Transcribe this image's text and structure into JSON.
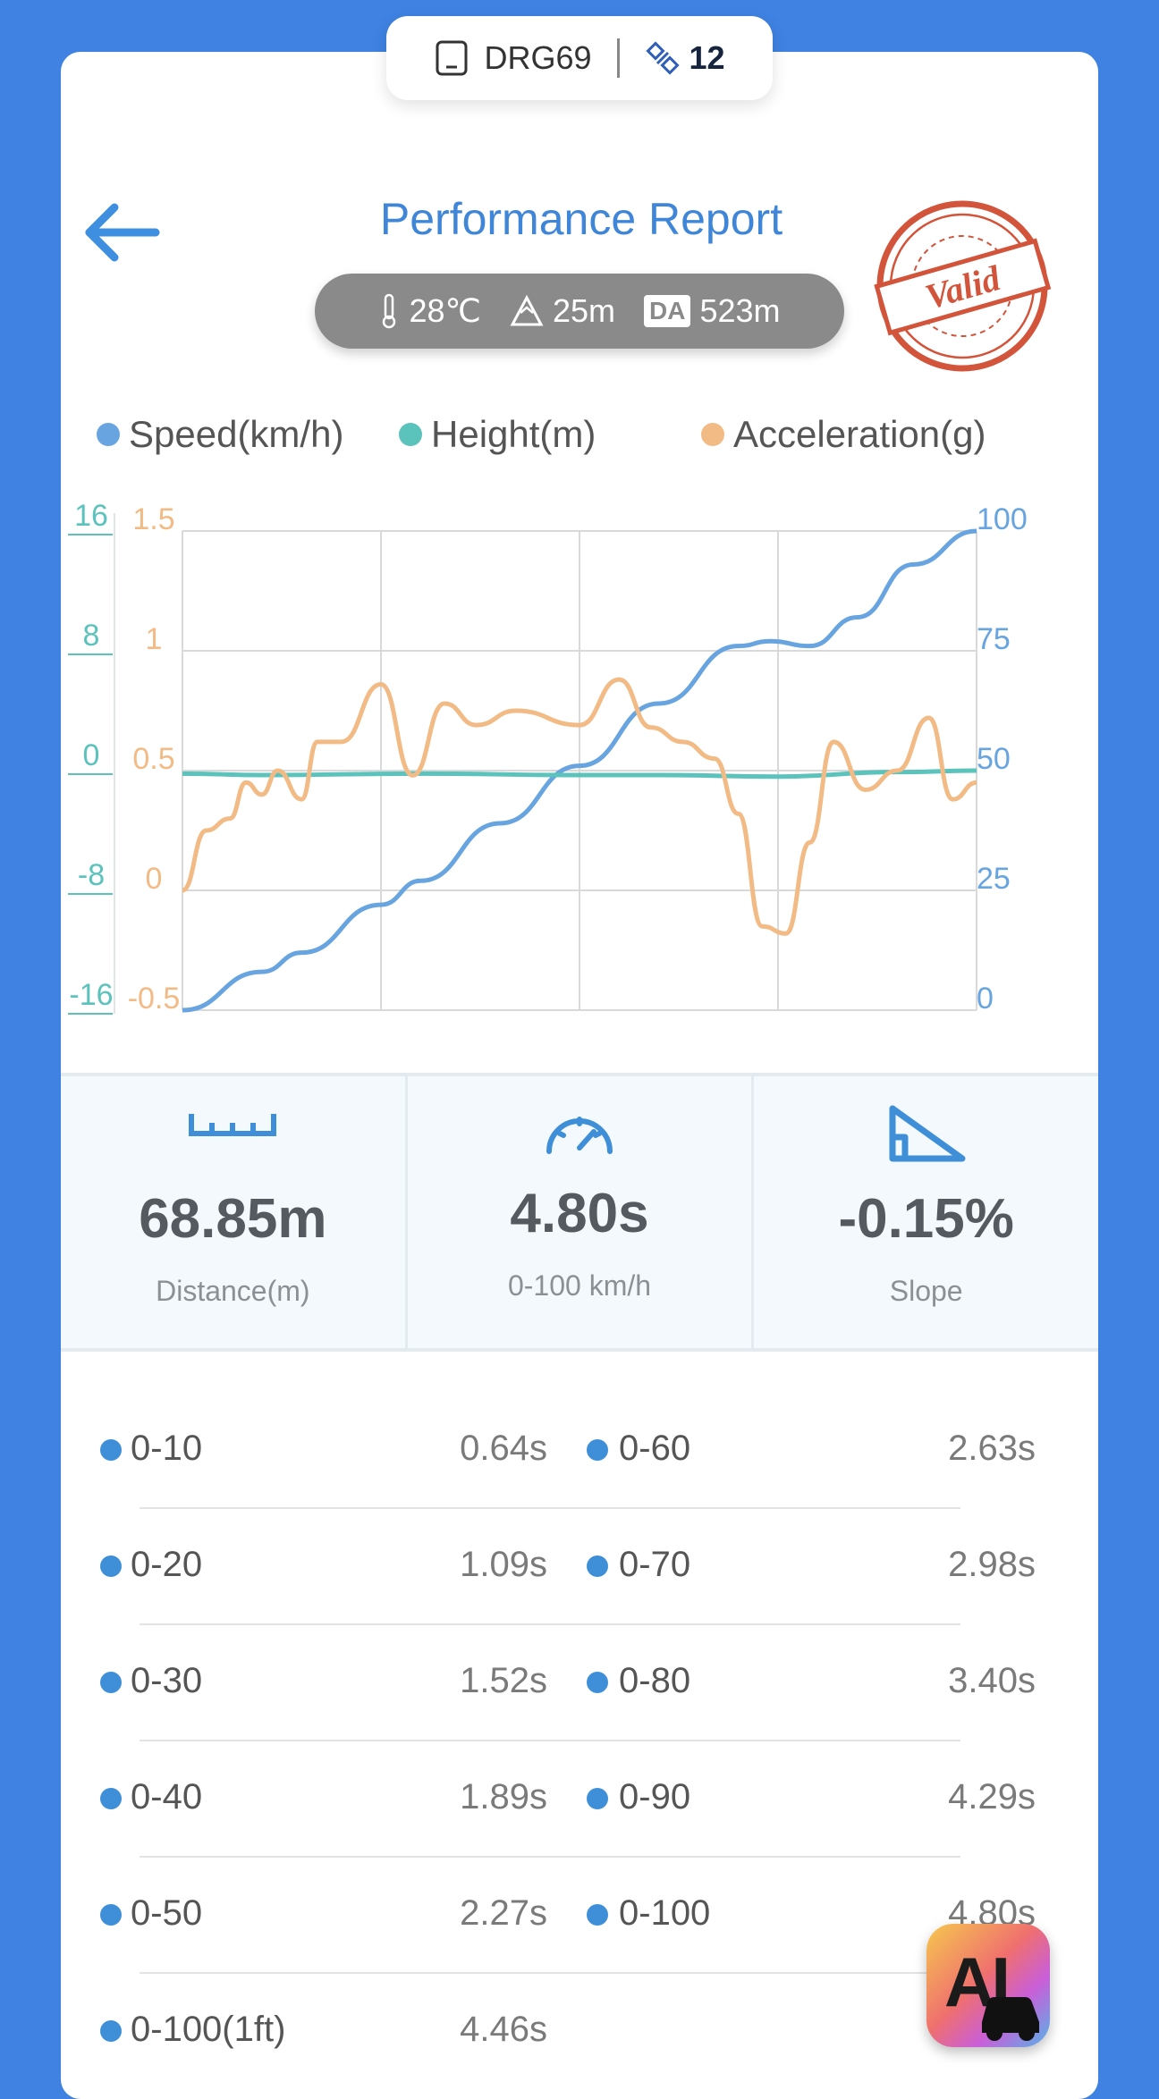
{
  "device": {
    "name": "DRG69",
    "satellites": "12"
  },
  "header": {
    "title": "Performance Report"
  },
  "env": {
    "temp": "28℃",
    "altitude": "25m",
    "da_label": "DA",
    "da_value": "523m"
  },
  "stamp": {
    "text": "Valid"
  },
  "legend": [
    {
      "label": "Speed(km/h)",
      "color": "#67a4e0"
    },
    {
      "label": "Height(m)",
      "color": "#5cc2bc"
    },
    {
      "label": "Acceleration(g)",
      "color": "#f2bb85"
    }
  ],
  "chart_data": {
    "type": "line",
    "axes": {
      "height_ticks": [
        "16",
        "8",
        "0",
        "-8",
        "-16"
      ],
      "accel_ticks": [
        "1.5",
        "1",
        "0.5",
        "0",
        "-0.5"
      ],
      "speed_ticks": [
        "100",
        "75",
        "50",
        "25",
        "0"
      ],
      "height_range": [
        -16,
        16
      ],
      "accel_range": [
        -0.5,
        1.5
      ],
      "speed_range": [
        0,
        100
      ]
    },
    "grid": true,
    "x_range": [
      0,
      1
    ],
    "series": [
      {
        "name": "Speed(km/h)",
        "color": "#67a4e0",
        "x": [
          0,
          0.1,
          0.15,
          0.25,
          0.3,
          0.4,
          0.5,
          0.6,
          0.7,
          0.74,
          0.79,
          0.85,
          0.92,
          1.0
        ],
        "values": [
          0,
          8,
          12,
          22,
          27,
          39,
          51,
          64,
          76,
          77,
          76,
          82,
          93,
          100
        ]
      },
      {
        "name": "Height(m)",
        "color": "#5cc2bc",
        "x": [
          0,
          0.1,
          0.3,
          0.5,
          0.6,
          0.75,
          0.9,
          1.0
        ],
        "values": [
          -0.2,
          -0.3,
          -0.2,
          -0.3,
          -0.3,
          -0.4,
          -0.1,
          0
        ]
      },
      {
        "name": "Acceleration(g)",
        "color": "#f2bb85",
        "x": [
          0,
          0.03,
          0.06,
          0.08,
          0.1,
          0.12,
          0.15,
          0.17,
          0.2,
          0.25,
          0.29,
          0.33,
          0.37,
          0.42,
          0.5,
          0.55,
          0.59,
          0.63,
          0.67,
          0.7,
          0.73,
          0.76,
          0.79,
          0.82,
          0.86,
          0.9,
          0.94,
          0.97,
          1.0
        ],
        "values": [
          0,
          0.25,
          0.3,
          0.45,
          0.4,
          0.5,
          0.38,
          0.62,
          0.62,
          0.86,
          0.48,
          0.78,
          0.69,
          0.75,
          0.69,
          0.88,
          0.68,
          0.62,
          0.55,
          0.32,
          -0.15,
          -0.18,
          0.2,
          0.62,
          0.42,
          0.5,
          0.72,
          0.38,
          0.45
        ]
      }
    ]
  },
  "stats": [
    {
      "value": "68.85m",
      "label": "Distance(m)",
      "icon": "ruler-icon"
    },
    {
      "value": "4.80s",
      "label": "0-100 km/h",
      "icon": "speedometer-icon"
    },
    {
      "value": "-0.15%",
      "label": "Slope",
      "icon": "slope-icon"
    }
  ],
  "splits": [
    {
      "l1": "0-10",
      "v1": "0.64s",
      "l2": "0-60",
      "v2": "2.63s"
    },
    {
      "l1": "0-20",
      "v1": "1.09s",
      "l2": "0-70",
      "v2": "2.98s"
    },
    {
      "l1": "0-30",
      "v1": "1.52s",
      "l2": "0-80",
      "v2": "3.40s"
    },
    {
      "l1": "0-40",
      "v1": "1.89s",
      "l2": "0-90",
      "v2": "4.29s"
    },
    {
      "l1": "0-50",
      "v1": "2.27s",
      "l2": "0-100",
      "v2": "4.80s"
    },
    {
      "l1": "0-100(1ft)",
      "v1": "4.46s",
      "l2": "",
      "v2": ""
    }
  ],
  "ai_button": {
    "label": "AI"
  }
}
